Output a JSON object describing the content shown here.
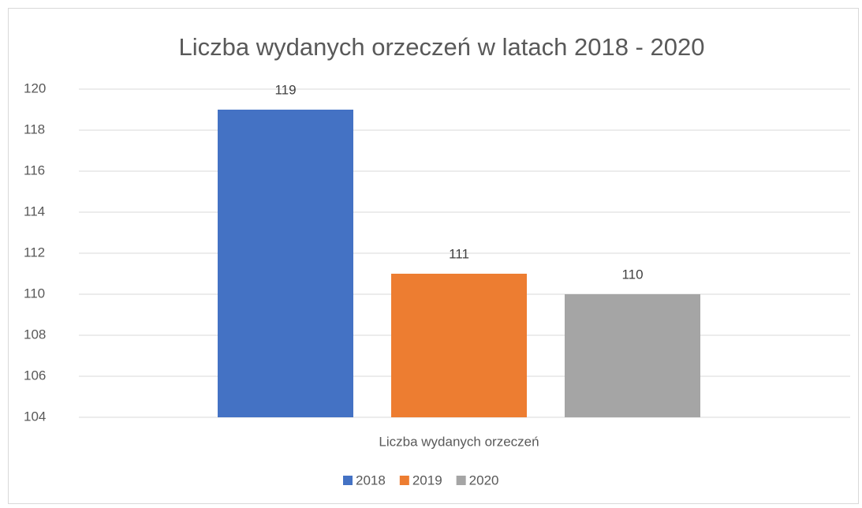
{
  "chart_data": {
    "type": "bar",
    "title": "Liczba wydanych orzeczeń w latach 2018 - 2020",
    "categories": [
      "Liczba wydanych orzeczeń"
    ],
    "series": [
      {
        "name": "2018",
        "color": "#4472c4",
        "values": [
          119
        ]
      },
      {
        "name": "2019",
        "color": "#ed7d31",
        "values": [
          111
        ]
      },
      {
        "name": "2020",
        "color": "#a5a5a5",
        "values": [
          110
        ]
      }
    ],
    "ylim": [
      104,
      120
    ],
    "yticks": [
      104,
      106,
      108,
      110,
      112,
      114,
      116,
      118,
      120
    ],
    "grid": true,
    "legend": "bottom",
    "data_labels": true
  }
}
